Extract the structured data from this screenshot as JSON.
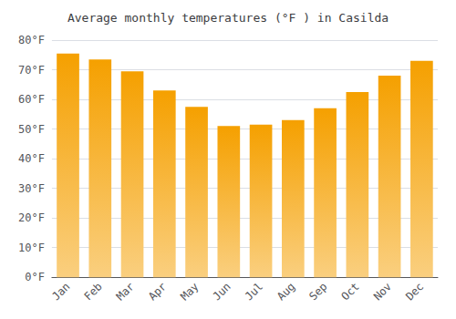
{
  "chart_data": {
    "type": "bar",
    "title": "Average monthly temperatures (°F ) in Casilda",
    "categories": [
      "Jan",
      "Feb",
      "Mar",
      "Apr",
      "May",
      "Jun",
      "Jul",
      "Aug",
      "Sep",
      "Oct",
      "Nov",
      "Dec"
    ],
    "values": [
      75.5,
      73.5,
      69.5,
      63.0,
      57.5,
      51.0,
      51.5,
      53.0,
      57.0,
      62.5,
      68.0,
      73.0
    ],
    "color": "#F5A000",
    "ylim": [
      0,
      80
    ],
    "yticks": [
      {
        "value": 0,
        "label": "0°F"
      },
      {
        "value": 10,
        "label": "10°F"
      },
      {
        "value": 20,
        "label": "20°F"
      },
      {
        "value": 30,
        "label": "30°F"
      },
      {
        "value": 40,
        "label": "40°F"
      },
      {
        "value": 50,
        "label": "50°F"
      },
      {
        "value": 60,
        "label": "60°F"
      },
      {
        "value": 70,
        "label": "70°F"
      },
      {
        "value": 80,
        "label": "80°F"
      }
    ],
    "grid": true
  }
}
